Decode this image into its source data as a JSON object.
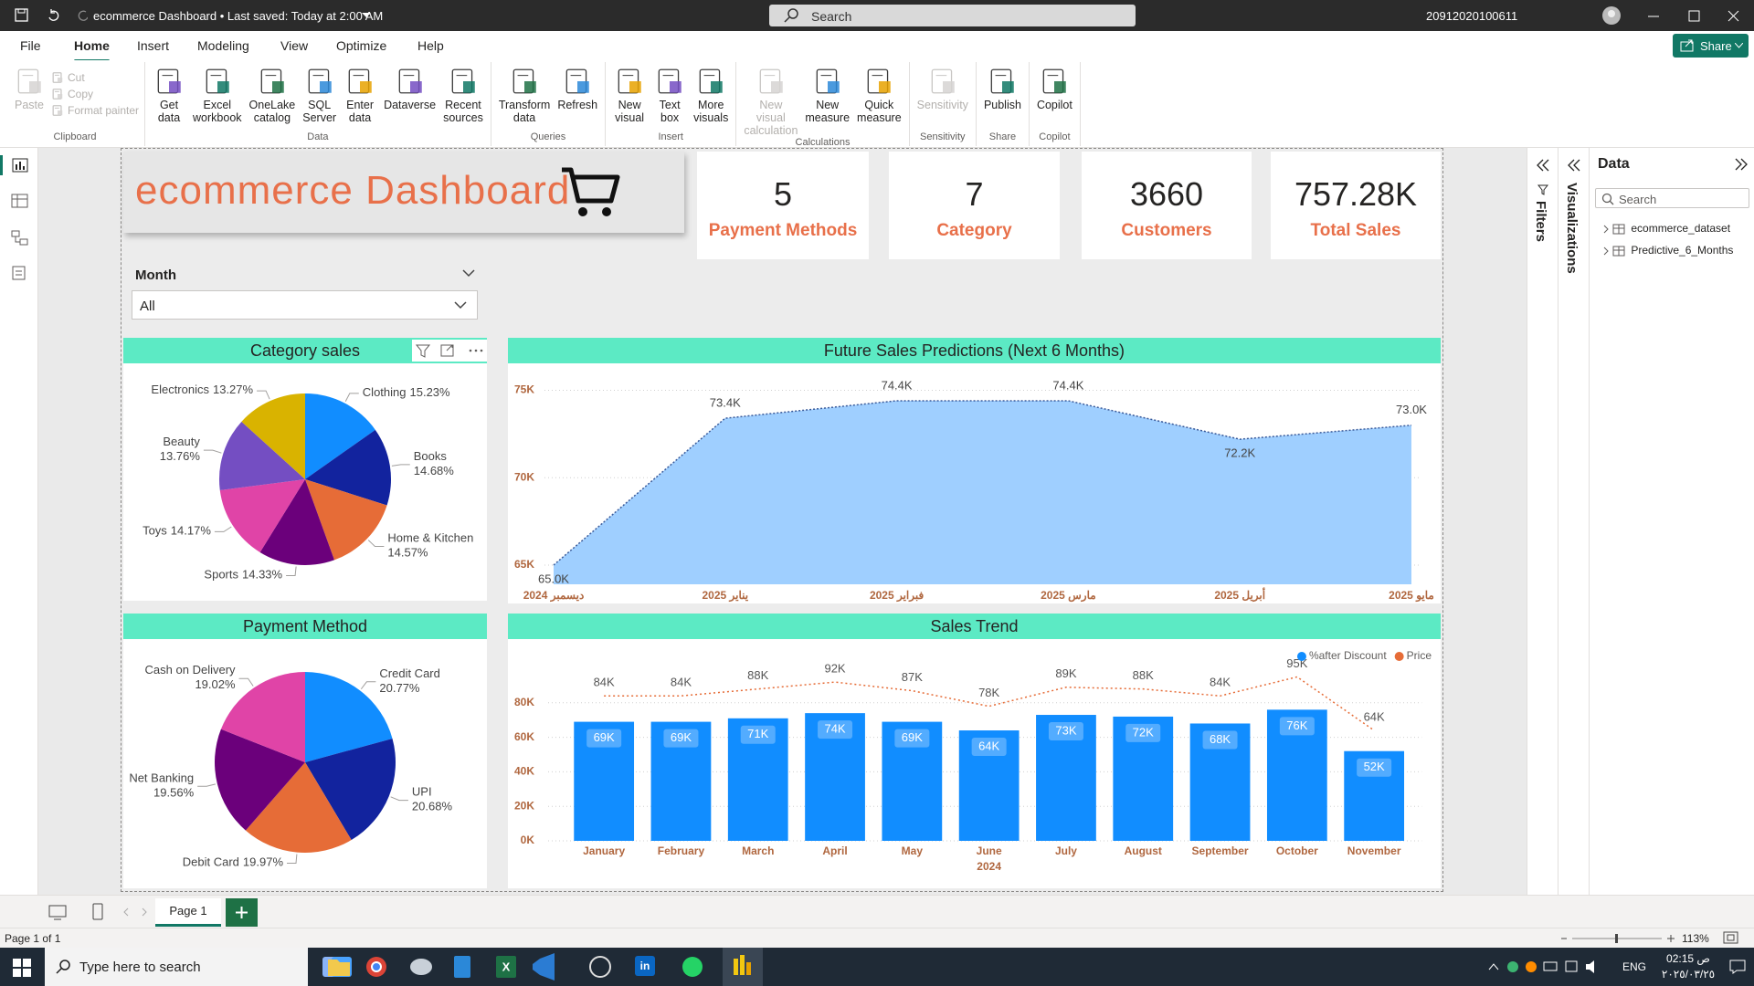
{
  "title_bar": {
    "title": "ecommerce Dashboard • Last saved: Today at 2:00 AM",
    "search": "Search",
    "user": "20912020100611"
  },
  "menu": [
    "File",
    "Home",
    "Insert",
    "Modeling",
    "View",
    "Optimize",
    "Help"
  ],
  "share": "Share",
  "ribbon": [
    {
      "label": "Clipboard",
      "buttons": [
        {
          "label": "Paste",
          "disabled": true
        }
      ],
      "small": [
        {
          "label": "Cut",
          "disabled": true
        },
        {
          "label": "Copy",
          "disabled": true
        },
        {
          "label": "Format painter",
          "disabled": true
        }
      ]
    },
    {
      "label": "Data",
      "buttons": [
        {
          "label": "Get data"
        },
        {
          "label": "Excel workbook"
        },
        {
          "label": "OneLake catalog"
        },
        {
          "label": "SQL Server"
        },
        {
          "label": "Enter data"
        },
        {
          "label": "Dataverse"
        },
        {
          "label": "Recent sources"
        }
      ]
    },
    {
      "label": "Queries",
      "buttons": [
        {
          "label": "Transform data"
        },
        {
          "label": "Refresh"
        }
      ]
    },
    {
      "label": "Insert",
      "buttons": [
        {
          "label": "New visual"
        },
        {
          "label": "Text box"
        },
        {
          "label": "More visuals"
        }
      ]
    },
    {
      "label": "Calculations",
      "buttons": [
        {
          "label": "New visual calculation",
          "disabled": true
        },
        {
          "label": "New measure"
        },
        {
          "label": "Quick measure"
        }
      ]
    },
    {
      "label": "Sensitivity",
      "buttons": [
        {
          "label": "Sensitivity",
          "disabled": true
        }
      ]
    },
    {
      "label": "Share",
      "buttons": [
        {
          "label": "Publish"
        }
      ]
    },
    {
      "label": "Copilot",
      "buttons": [
        {
          "label": "Copilot"
        }
      ]
    }
  ],
  "report": {
    "title": "ecommerce Dashboard",
    "kpis": [
      {
        "value": 5,
        "label": "Payment Methods"
      },
      {
        "value": 7,
        "label": "Category"
      },
      {
        "value": 3660,
        "label": "Customers"
      },
      {
        "value": "757.28K",
        "label": "Total Sales"
      }
    ],
    "slicer": {
      "label": "Month",
      "value": "All"
    }
  },
  "category_sales": {
    "type": "pie",
    "title": "Category sales",
    "categories": [
      "Clothing",
      "Books",
      "Home & Kitchen",
      "Sports",
      "Toys",
      "Beauty",
      "Electronics"
    ],
    "values": [
      15.23,
      14.68,
      14.57,
      14.33,
      14.17,
      13.76,
      13.27
    ],
    "value_labels": [
      "15.23%",
      "14.68%",
      "14.57%",
      "14.33%",
      "14.17%",
      "13.76%",
      "13.27%"
    ],
    "colors": [
      "#118dff",
      "#12239e",
      "#e66c37",
      "#6b007b",
      "#e044a7",
      "#744ec2",
      "#d9b300"
    ]
  },
  "future_sales": {
    "type": "area",
    "title": "Future Sales Predictions (Next 6 Months)",
    "categories": [
      "ديسمبر 2024",
      "يناير 2025",
      "فبراير 2025",
      "مارس 2025",
      "أبريل 2025",
      "مايو 2025"
    ],
    "values": [
      65.0,
      73.4,
      74.4,
      74.4,
      72.2,
      73.0
    ],
    "value_labels": [
      "65.0K",
      "73.4K",
      "74.4K",
      "74.4K",
      "72.2K",
      "73.0K"
    ],
    "color": "#9fcfff",
    "line_color": "#3b5b9a",
    "ylim": [
      63.9,
      75.6
    ],
    "yticks": [
      {
        "value": 65,
        "label": "65K"
      },
      {
        "value": 70,
        "label": "70K"
      },
      {
        "value": 75,
        "label": "75K"
      }
    ],
    "grid": true
  },
  "payment_method": {
    "type": "pie",
    "title": "Payment Method",
    "categories": [
      "Credit Card",
      "UPI",
      "Debit Card",
      "Net Banking",
      "Cash on Delivery"
    ],
    "values": [
      20.77,
      20.68,
      19.97,
      19.56,
      19.02
    ],
    "value_labels": [
      "20.77%",
      "20.68%",
      "19.97%",
      "19.56%",
      "19.02%"
    ],
    "colors": [
      "#118dff",
      "#12239e",
      "#e66c37",
      "#6b007b",
      "#e044a7"
    ]
  },
  "sales_trend": {
    "type": "combo",
    "title": "Sales Trend",
    "categories": [
      "January",
      "February",
      "March",
      "April",
      "May",
      "June",
      "July",
      "August",
      "September",
      "October",
      "November"
    ],
    "x_axis_year": "2024",
    "series": [
      {
        "name": "%after Discount",
        "type": "bar",
        "color": "#118dff",
        "values": [
          69,
          69,
          71,
          74,
          69,
          64,
          73,
          72,
          68,
          76,
          52
        ],
        "value_labels": [
          "69K",
          "69K",
          "71K",
          "74K",
          "69K",
          "64K",
          "73K",
          "72K",
          "68K",
          "76K",
          "52K"
        ]
      },
      {
        "name": "Price",
        "type": "line",
        "color": "#e66c37",
        "values": [
          84,
          84,
          88,
          92,
          87,
          78,
          89,
          88,
          84,
          95,
          64
        ],
        "value_labels": [
          "84K",
          "84K",
          "88K",
          "92K",
          "87K",
          "78K",
          "89K",
          "88K",
          "84K",
          "95K",
          "64K"
        ]
      }
    ],
    "ylim": [
      0,
      100
    ],
    "yticks": [
      {
        "value": 0,
        "label": "0K"
      },
      {
        "value": 20,
        "label": "20K"
      },
      {
        "value": 40,
        "label": "40K"
      },
      {
        "value": 60,
        "label": "60K"
      },
      {
        "value": 80,
        "label": "80K"
      }
    ],
    "grid": true,
    "legend": "top-right"
  },
  "panes": {
    "filters": "Filters",
    "visualizations": "Visualizations",
    "data": "Data",
    "search": "Search",
    "tables": [
      "ecommerce_dataset",
      "Predictive_6_Months"
    ]
  },
  "footer": {
    "page_tab": "Page 1",
    "status": "Page 1 of 1",
    "zoom": "113%"
  },
  "taskbar": {
    "search": "Type here to search",
    "language": "ENG",
    "time": "02:15 ص",
    "date": "٢٠٢٥/٠٣/٢٥"
  }
}
